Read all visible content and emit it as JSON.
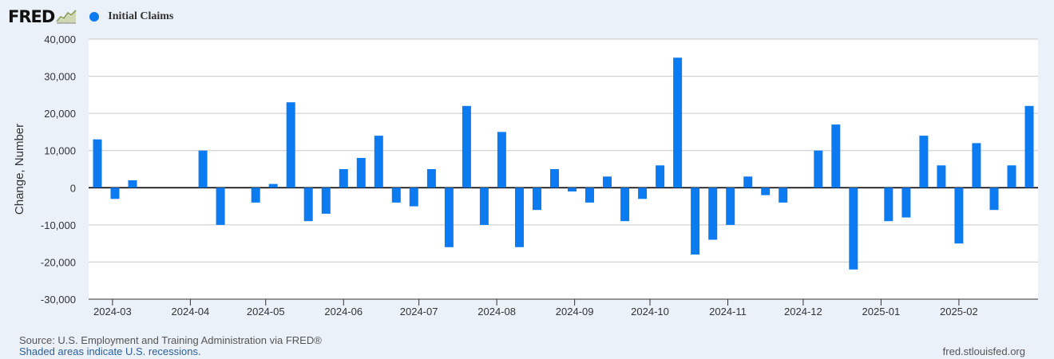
{
  "header": {
    "logo_text": "FRED",
    "legend_label": "Initial Claims"
  },
  "footer": {
    "source": "Source: U.S. Employment and Training Administration via FRED®",
    "note": "Shaded areas indicate U.S. recessions.",
    "site": "fred.stlouisfed.org"
  },
  "colors": {
    "series": "#0c7af0",
    "background": "#eaf1f8",
    "plot_background": "#ffffff"
  },
  "chart_data": {
    "type": "bar",
    "ylabel": "Change, Number",
    "ylim": [
      -30000,
      40000
    ],
    "yticks": [
      40000,
      30000,
      20000,
      10000,
      0,
      -10000,
      -20000,
      -30000
    ],
    "ytick_labels": [
      "40,000",
      "30,000",
      "20,000",
      "10,000",
      "0",
      "-10,000",
      "-20,000",
      "-30,000"
    ],
    "xtick_labels": [
      "2024-03",
      "2024-04",
      "2024-05",
      "2024-06",
      "2024-07",
      "2024-08",
      "2024-09",
      "2024-10",
      "2024-11",
      "2024-12",
      "2025-01",
      "2025-02"
    ],
    "grid": true,
    "series": [
      {
        "name": "Initial Claims",
        "x": [
          "2024-02-24",
          "2024-03-02",
          "2024-03-09",
          "2024-03-16",
          "2024-03-23",
          "2024-03-30",
          "2024-04-06",
          "2024-04-13",
          "2024-04-20",
          "2024-04-27",
          "2024-05-04",
          "2024-05-11",
          "2024-05-18",
          "2024-05-25",
          "2024-06-01",
          "2024-06-08",
          "2024-06-15",
          "2024-06-22",
          "2024-06-29",
          "2024-07-06",
          "2024-07-13",
          "2024-07-20",
          "2024-07-27",
          "2024-08-03",
          "2024-08-10",
          "2024-08-17",
          "2024-08-24",
          "2024-08-31",
          "2024-09-07",
          "2024-09-14",
          "2024-09-21",
          "2024-09-28",
          "2024-10-05",
          "2024-10-12",
          "2024-10-19",
          "2024-10-26",
          "2024-11-02",
          "2024-11-09",
          "2024-11-16",
          "2024-11-23",
          "2024-11-30",
          "2024-12-07",
          "2024-12-14",
          "2024-12-21",
          "2024-12-28",
          "2025-01-04",
          "2025-01-11",
          "2025-01-18",
          "2025-01-25",
          "2025-02-01",
          "2025-02-08",
          "2025-02-15",
          "2025-02-22",
          "2025-03-01"
        ],
        "values": [
          13000,
          -3000,
          2000,
          0,
          0,
          0,
          10000,
          -10000,
          0,
          -4000,
          1000,
          23000,
          -9000,
          -7000,
          5000,
          8000,
          14000,
          -4000,
          -5000,
          5000,
          -16000,
          22000,
          -10000,
          15000,
          -16000,
          -6000,
          5000,
          -1000,
          -4000,
          3000,
          -9000,
          -3000,
          6000,
          35000,
          -18000,
          -14000,
          -10000,
          3000,
          -2000,
          -4000,
          0,
          10000,
          17000,
          -22000,
          0,
          -9000,
          -8000,
          14000,
          6000,
          -15000,
          12000,
          -6000,
          6000,
          22000
        ]
      }
    ]
  }
}
